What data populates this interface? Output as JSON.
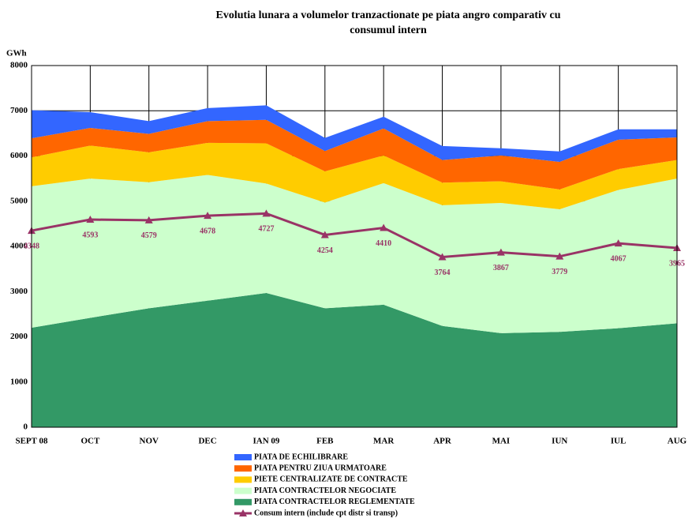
{
  "chart_data": {
    "type": "area",
    "title": [
      "Evolutia lunara a volumelor tranzactionate pe piata angro comparativ cu",
      "consumul intern"
    ],
    "y_label": "GWh",
    "categories": [
      "SEPT 08",
      "OCT",
      "NOV",
      "DEC",
      "IAN 09",
      "FEB",
      "MAR",
      "APR",
      "MAI",
      "IUN",
      "IUL",
      "AUG"
    ],
    "ylim": [
      0,
      8000
    ],
    "yticks": [
      0,
      1000,
      2000,
      3000,
      4000,
      5000,
      6000,
      7000,
      8000
    ],
    "grid": true,
    "series": [
      {
        "name": "PIATA CONTRACTELOR REGLEMENTATE",
        "type": "area",
        "color": "#339966",
        "values": [
          2200,
          2420,
          2630,
          2800,
          2970,
          2630,
          2710,
          2240,
          2080,
          2110,
          2190,
          2300
        ]
      },
      {
        "name": "PIATA CONTRACTELOR NEGOCIATE",
        "type": "area",
        "color": "#ccffcc",
        "values": [
          3130,
          3080,
          2790,
          2780,
          2420,
          2340,
          2690,
          2670,
          2880,
          2710,
          3060,
          3200
        ]
      },
      {
        "name": "PIETE CENTRALIZATE DE CONTRACTE",
        "type": "area",
        "color": "#ffcc00",
        "values": [
          640,
          730,
          660,
          710,
          890,
          690,
          610,
          500,
          480,
          440,
          460,
          410
        ]
      },
      {
        "name": "PIATA PENTRU ZIUA URMATOARE",
        "type": "area",
        "color": "#ff6600",
        "values": [
          420,
          390,
          410,
          480,
          520,
          450,
          600,
          500,
          570,
          610,
          650,
          500
        ]
      },
      {
        "name": "PIATA DE ECHILIBRARE",
        "type": "area",
        "color": "#3366ff",
        "values": [
          620,
          350,
          280,
          290,
          320,
          290,
          260,
          310,
          160,
          230,
          230,
          180
        ]
      },
      {
        "name": "Consum intern (include cpt distr si transp)",
        "type": "line",
        "color": "#993366",
        "values": [
          4348,
          4593,
          4579,
          4678,
          4727,
          4254,
          4410,
          3764,
          3867,
          3779,
          4067,
          3965
        ]
      }
    ]
  }
}
